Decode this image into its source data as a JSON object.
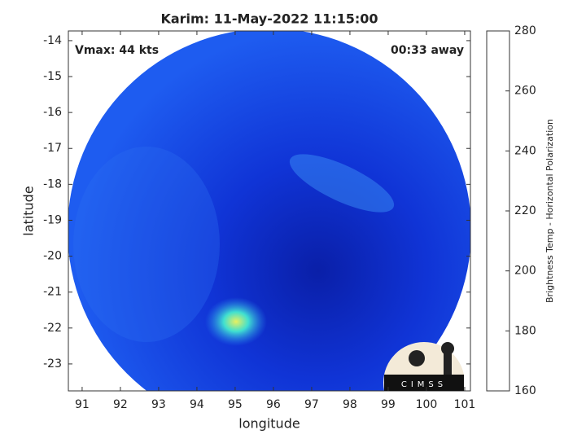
{
  "chart_data": {
    "type": "image",
    "title": "Karim: 11-May-2022 11:15:00",
    "annotations": [
      "Vmax: 44 kts",
      "00:33 away"
    ],
    "xlabel": "longitude",
    "ylabel": "latitude",
    "xlim": [
      90.64,
      101.15
    ],
    "xticks": [
      91,
      92,
      93,
      94,
      95,
      96,
      97,
      98,
      99,
      100,
      101
    ],
    "ylim": [
      -23.75,
      -13.73
    ],
    "yticks": [
      -14,
      -15,
      -16,
      -17,
      -18,
      -19,
      -20,
      -21,
      -22,
      -23
    ],
    "colorbar": {
      "label": "Brightness Temp - Horizontal Polarization",
      "lim": [
        160,
        280
      ],
      "ticks": [
        160,
        180,
        200,
        220,
        240,
        260,
        280
      ],
      "colors": [
        "#800000",
        "#ff0000",
        "#ffff00",
        "#00ffff",
        "#0080ff",
        "#0000ff",
        "#000080"
      ]
    },
    "logo": "CIMSS"
  }
}
